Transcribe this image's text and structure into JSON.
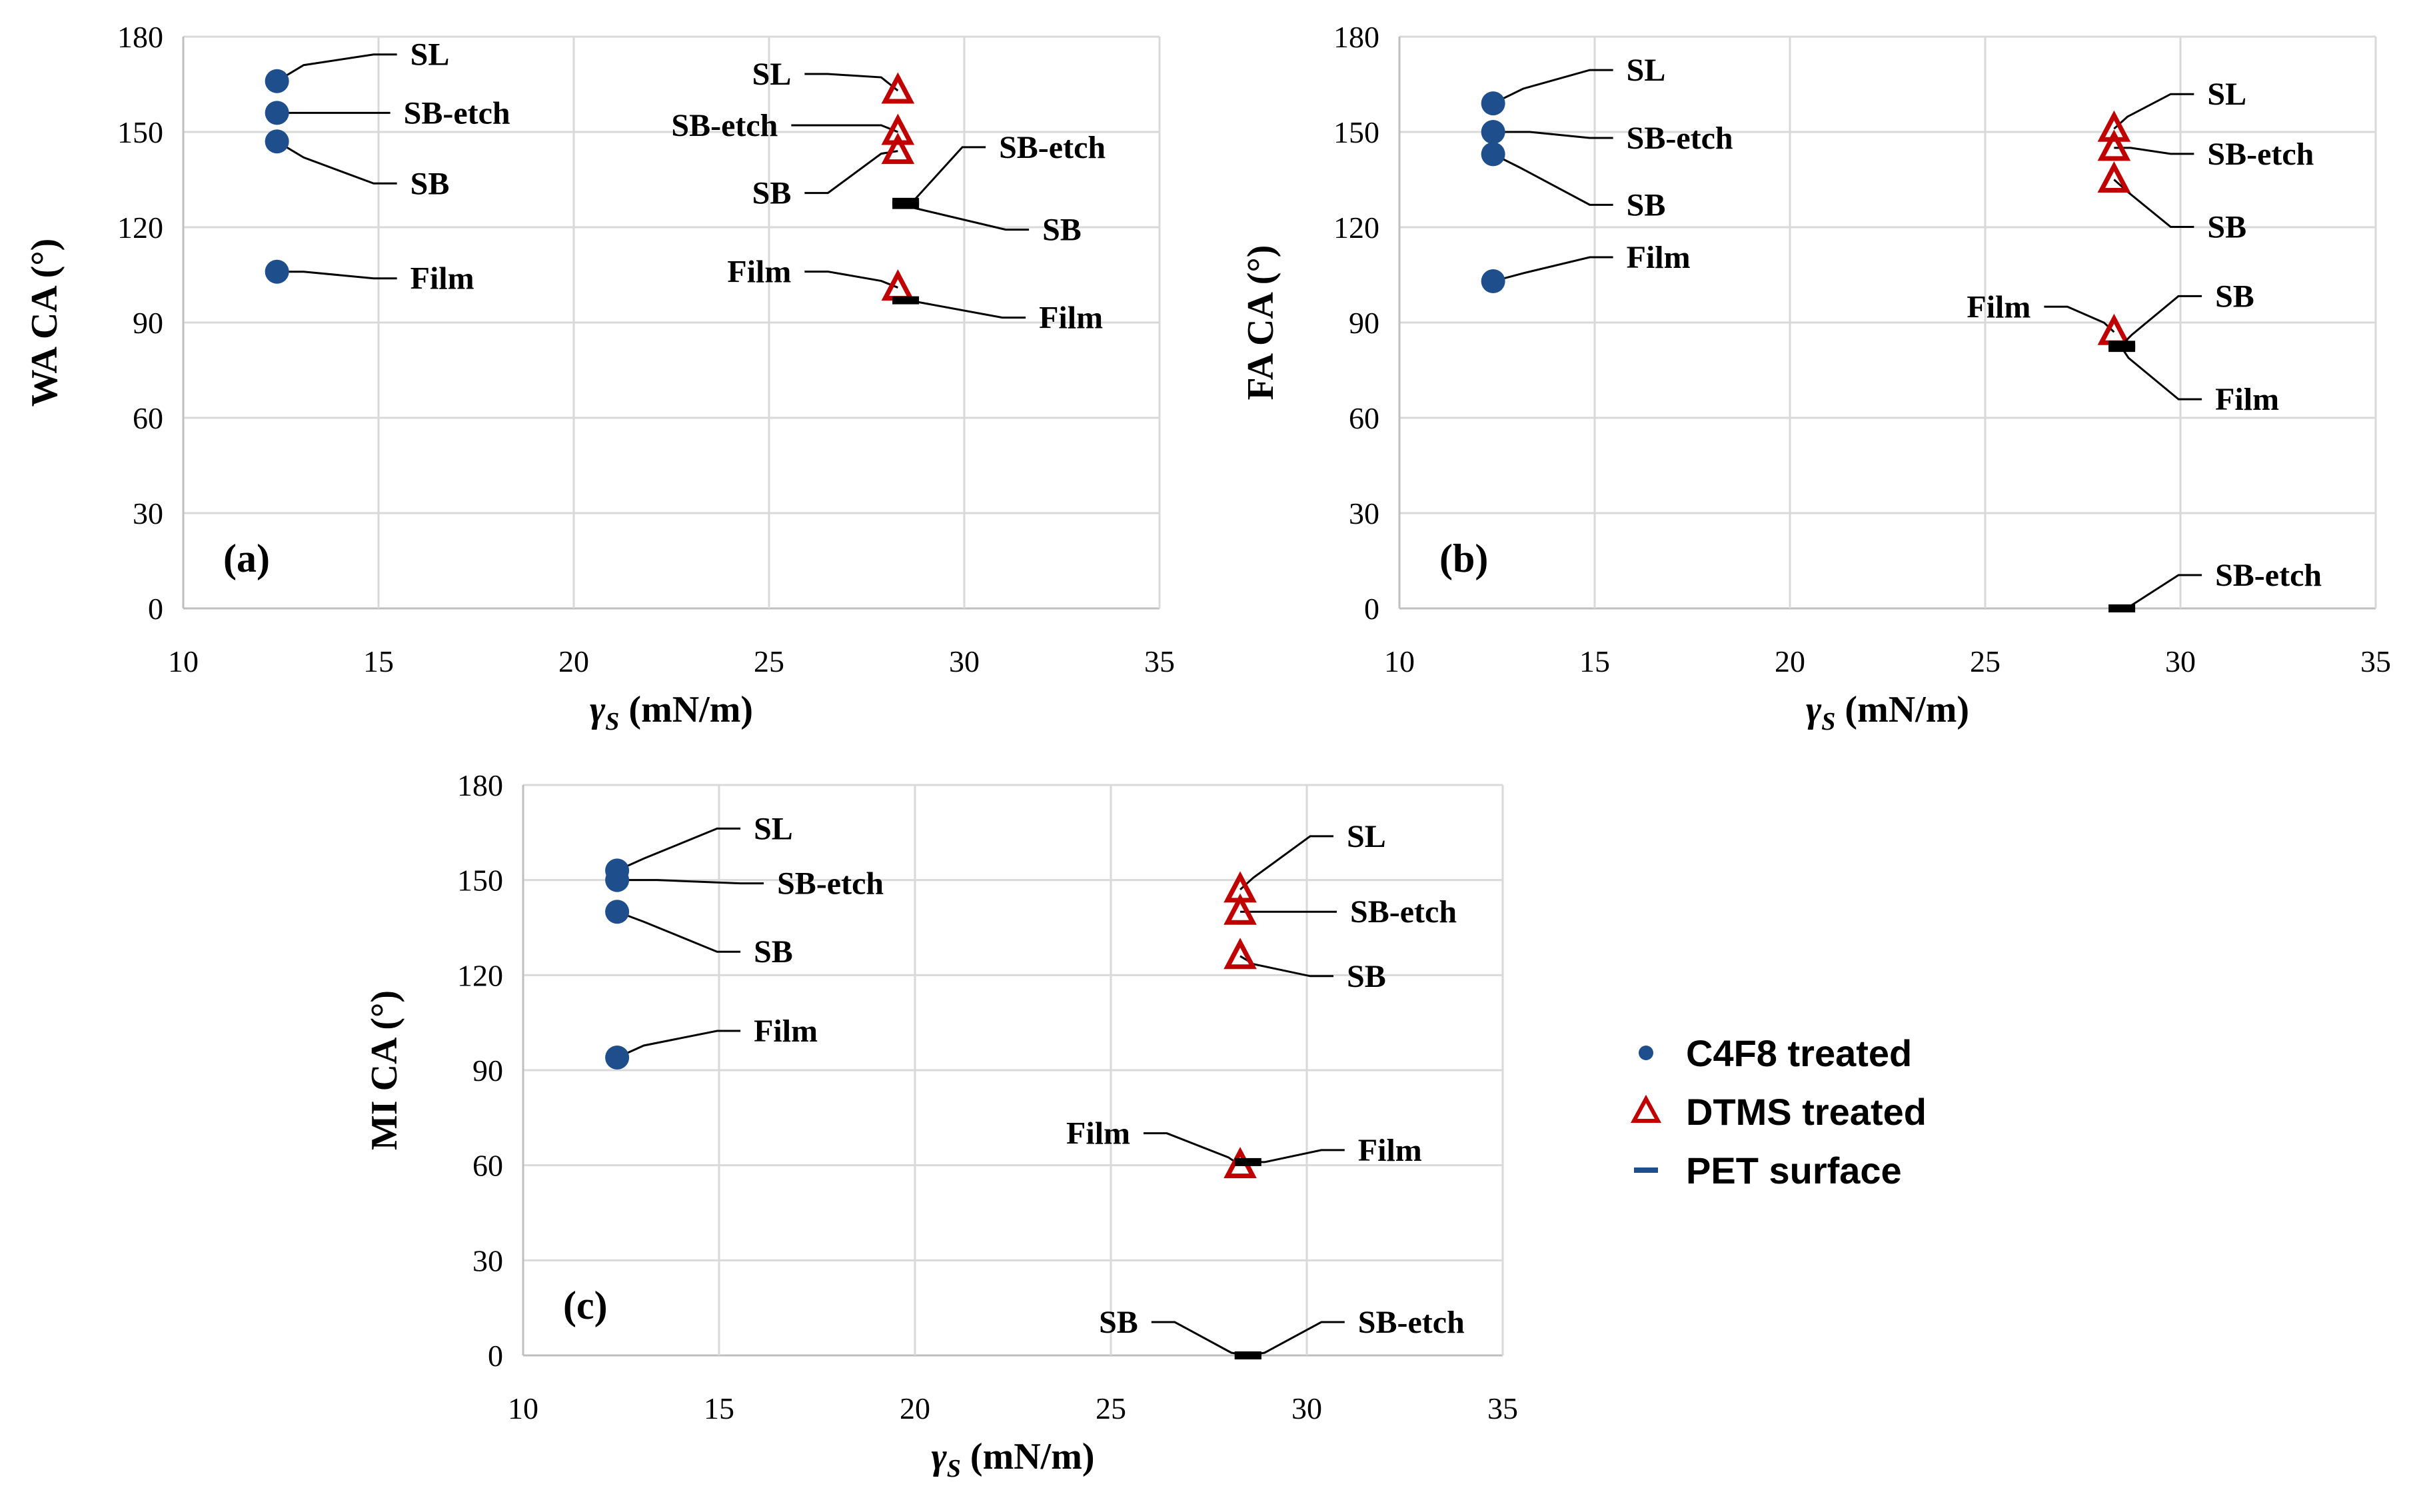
{
  "colors": {
    "c4f8": "#1f4e8c",
    "dtms": "#c00000",
    "pet": "#000000",
    "grid": "#d9d9d9",
    "axis": "#bfbfbf",
    "leader": "#000000"
  },
  "legend": {
    "items": [
      {
        "label": "C4F8 treated",
        "marker": "circle",
        "color": "#1f4e8c"
      },
      {
        "label": "DTMS treated",
        "marker": "triangle",
        "color": "#c00000"
      },
      {
        "label": "PET surface",
        "marker": "dash",
        "color": "#1f4e8c"
      }
    ]
  },
  "chart_data": [
    {
      "panel": "(a)",
      "type": "scatter",
      "xlabel_symbol": "γ",
      "xlabel_sub": "S",
      "xlabel_unit": " (mN/m)",
      "ylabel": "WA CA (°)",
      "xlim": [
        10,
        35
      ],
      "ylim": [
        0,
        180
      ],
      "xticks": [
        "10",
        "15",
        "20",
        "25",
        "30",
        "35"
      ],
      "yticks": [
        "0",
        "30",
        "60",
        "90",
        "120",
        "150",
        "180"
      ],
      "series": [
        {
          "name": "C4F8 treated",
          "points": [
            {
              "x": 12.4,
              "y": 166,
              "label": "SL"
            },
            {
              "x": 12.4,
              "y": 156,
              "label": "SB-etch"
            },
            {
              "x": 12.4,
              "y": 147,
              "label": "SB"
            },
            {
              "x": 12.4,
              "y": 106,
              "label": "Film"
            }
          ]
        },
        {
          "name": "DTMS treated",
          "points": [
            {
              "x": 28.3,
              "y": 163,
              "label": "SL"
            },
            {
              "x": 28.3,
              "y": 150,
              "label": "SB-etch"
            },
            {
              "x": 28.3,
              "y": 144,
              "label": "SB"
            },
            {
              "x": 28.3,
              "y": 101,
              "label": "Film"
            }
          ]
        },
        {
          "name": "PET surface",
          "points": [
            {
              "x": 28.5,
              "y": 128,
              "label": "SB-etch"
            },
            {
              "x": 28.5,
              "y": 127,
              "label": "SB"
            },
            {
              "x": 28.5,
              "y": 97,
              "label": "Film"
            }
          ]
        }
      ]
    },
    {
      "panel": "(b)",
      "type": "scatter",
      "xlabel_symbol": "γ",
      "xlabel_sub": "S",
      "xlabel_unit": " (mN/m)",
      "ylabel": "FA CA (°)",
      "xlim": [
        10,
        35
      ],
      "ylim": [
        0,
        180
      ],
      "xticks": [
        "10",
        "15",
        "20",
        "25",
        "30",
        "35"
      ],
      "yticks": [
        "0",
        "30",
        "60",
        "90",
        "120",
        "150",
        "180"
      ],
      "series": [
        {
          "name": "C4F8 treated",
          "points": [
            {
              "x": 12.4,
              "y": 159,
              "label": "SL"
            },
            {
              "x": 12.4,
              "y": 150,
              "label": "SB-etch"
            },
            {
              "x": 12.4,
              "y": 143,
              "label": "SB"
            },
            {
              "x": 12.4,
              "y": 103,
              "label": "Film"
            }
          ]
        },
        {
          "name": "DTMS treated",
          "points": [
            {
              "x": 28.3,
              "y": 151,
              "label": "SL"
            },
            {
              "x": 28.3,
              "y": 145,
              "label": "SB-etch"
            },
            {
              "x": 28.3,
              "y": 135,
              "label": "SB"
            },
            {
              "x": 28.3,
              "y": 87,
              "label": "Film"
            }
          ]
        },
        {
          "name": "PET surface",
          "points": [
            {
              "x": 28.5,
              "y": 83,
              "label": "SB"
            },
            {
              "x": 28.5,
              "y": 82,
              "label": "Film"
            },
            {
              "x": 28.5,
              "y": 0,
              "label": "SB-etch"
            }
          ]
        }
      ]
    },
    {
      "panel": "(c)",
      "type": "scatter",
      "xlabel_symbol": "γ",
      "xlabel_sub": "S",
      "xlabel_unit": " (mN/m)",
      "ylabel": "MI CA (°)",
      "xlim": [
        10,
        35
      ],
      "ylim": [
        0,
        180
      ],
      "xticks": [
        "10",
        "15",
        "20",
        "25",
        "30",
        "35"
      ],
      "yticks": [
        "0",
        "30",
        "60",
        "90",
        "120",
        "150",
        "180"
      ],
      "series": [
        {
          "name": "C4F8 treated",
          "points": [
            {
              "x": 12.4,
              "y": 153,
              "label": "SL"
            },
            {
              "x": 12.4,
              "y": 150,
              "label": "SB-etch"
            },
            {
              "x": 12.4,
              "y": 140,
              "label": "SB"
            },
            {
              "x": 12.4,
              "y": 94,
              "label": "Film"
            }
          ]
        },
        {
          "name": "DTMS treated",
          "points": [
            {
              "x": 28.3,
              "y": 147,
              "label": "SL"
            },
            {
              "x": 28.3,
              "y": 140,
              "label": "SB-etch"
            },
            {
              "x": 28.3,
              "y": 126,
              "label": "SB"
            },
            {
              "x": 28.3,
              "y": 60,
              "label": "Film"
            }
          ]
        },
        {
          "name": "PET surface",
          "points": [
            {
              "x": 28.5,
              "y": 61,
              "label": "Film"
            },
            {
              "x": 28.5,
              "y": 0,
              "label": "SB"
            },
            {
              "x": 28.5,
              "y": 0,
              "label": "SB-etch"
            }
          ]
        }
      ]
    }
  ]
}
